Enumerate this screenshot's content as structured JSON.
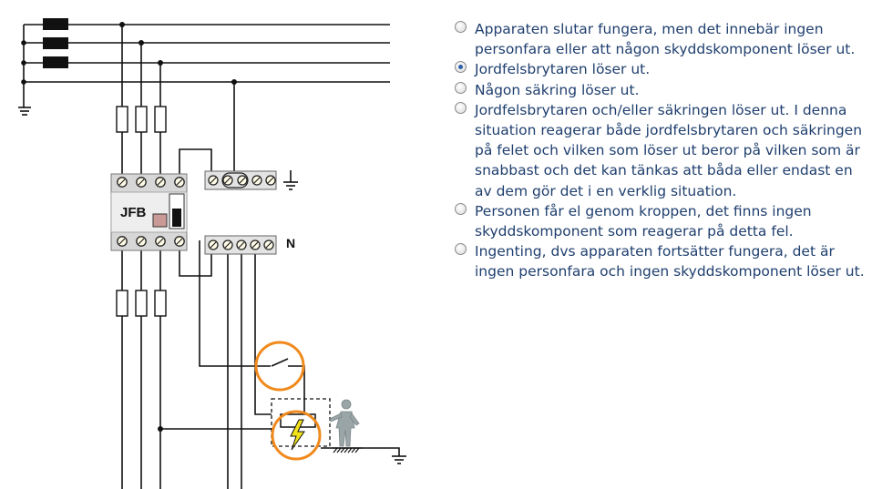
{
  "diagram": {
    "device_label": "JFB",
    "neutral_label": "N",
    "colors": {
      "wire": "#111111",
      "fault_circle": "#f08a1e",
      "lightning": "#f2e21b",
      "person": "#9aa5a8"
    }
  },
  "question": {
    "selected_index": 1,
    "options": [
      {
        "text": "Apparaten slutar fungera, men det innebär ingen personfara eller att någon skyddskomponent löser ut."
      },
      {
        "text": "Jordfelsbrytaren löser ut."
      },
      {
        "text": "Någon säkring löser ut."
      },
      {
        "text": "Jordfelsbrytaren och/eller säkringen löser ut. I denna situation reagerar både jordfelsbrytaren och säkringen på felet och vilken som löser ut beror på vilken som är snabbast och det kan tänkas att båda eller endast en av dem gör det i en verklig situation."
      },
      {
        "text": "Personen får el genom kroppen, det finns ingen skyddskomponent som reagerar på detta fel."
      },
      {
        "text": "Ingenting, dvs apparaten fortsätter fungera, det är ingen personfara och ingen skyddskomponent löser ut."
      }
    ]
  }
}
